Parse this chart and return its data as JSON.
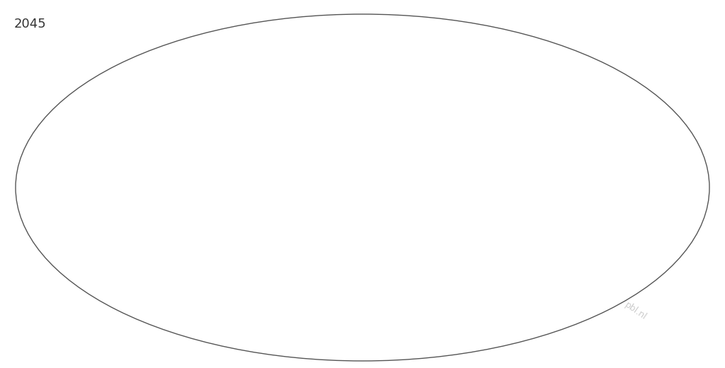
{
  "title": "2045",
  "title_fontsize": 13,
  "title_color": "#333333",
  "watermark": "pbl.nl",
  "watermark_color": "#aaaaaa",
  "watermark_fontsize": 9,
  "watermark_rotation": -35,
  "background_color": "#ffffff",
  "figsize": [
    10.24,
    5.2
  ],
  "dpi": 100,
  "land_use_colors": {
    "ocean": "#ffffff",
    "bare": "#c0c0c0",
    "tundra": "#c8d8b0",
    "grassland": "#b5d46e",
    "shrubland": "#cbc96a",
    "forest_light": "#6ab55a",
    "forest_dense": "#2d7a2d",
    "cropland_light": "#ffc07a",
    "cropland_intense": "#f47c20",
    "mosaic_fc": "#8844aa",
    "mosaic_cg": "#55aadd",
    "urban": "#cc2200",
    "ice": "#e8e8e8"
  }
}
